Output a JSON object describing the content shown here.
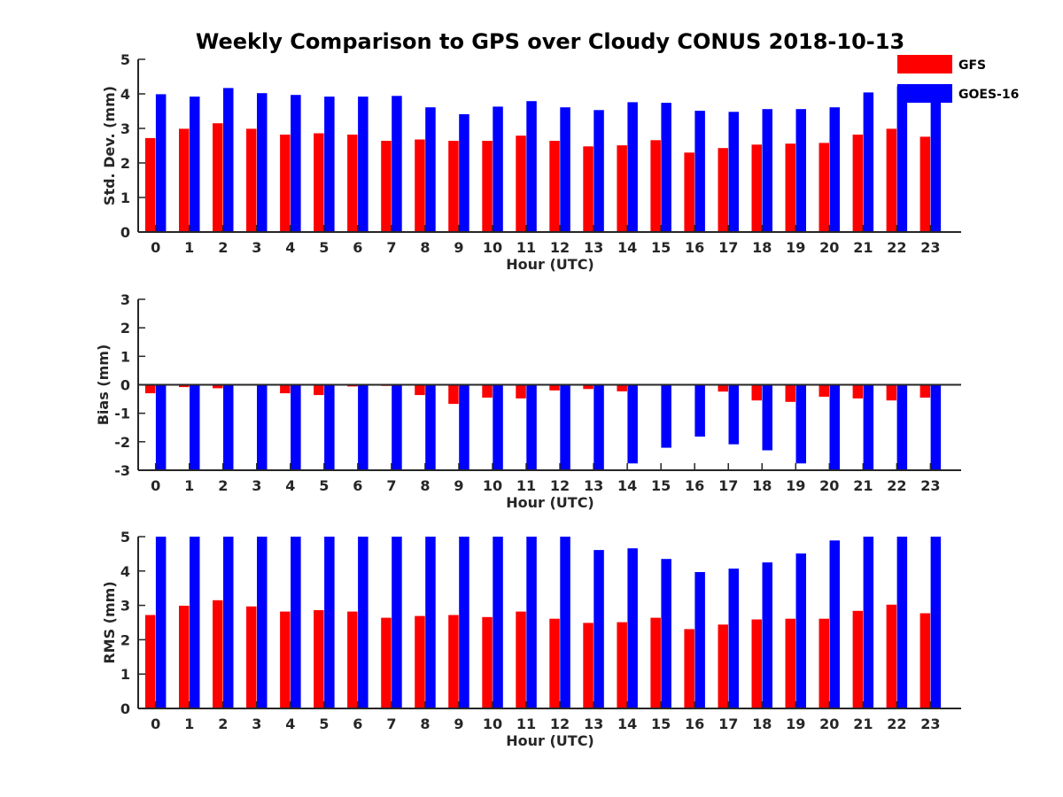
{
  "title": "Weekly Comparison to GPS over Cloudy CONUS 2018-10-13",
  "legend": {
    "placement": "top-right",
    "entries": [
      {
        "name": "GFS",
        "color": "#ff0000"
      },
      {
        "name": "GOES-16",
        "color": "#0000ff"
      }
    ]
  },
  "chart_data": [
    {
      "type": "bar",
      "xlabel": "Hour (UTC)",
      "ylabel": "Std. Dev. (mm)",
      "ylim": [
        0,
        5
      ],
      "yticks": [
        "0",
        "1",
        "2",
        "3",
        "4",
        "5"
      ],
      "categories": [
        "0",
        "1",
        "2",
        "3",
        "4",
        "5",
        "6",
        "7",
        "8",
        "9",
        "10",
        "11",
        "12",
        "13",
        "14",
        "15",
        "16",
        "17",
        "18",
        "19",
        "20",
        "21",
        "22",
        "23"
      ],
      "series": [
        {
          "name": "GFS",
          "color": "#ff0000",
          "values": [
            2.72,
            2.99,
            3.15,
            2.99,
            2.82,
            2.86,
            2.82,
            2.64,
            2.68,
            2.64,
            2.64,
            2.79,
            2.64,
            2.48,
            2.51,
            2.66,
            2.3,
            2.43,
            2.53,
            2.56,
            2.58,
            2.82,
            2.99,
            2.76
          ]
        },
        {
          "name": "GOES-16",
          "color": "#0000ff",
          "values": [
            3.99,
            3.92,
            4.17,
            4.02,
            3.97,
            3.92,
            3.92,
            3.94,
            3.61,
            3.41,
            3.63,
            3.79,
            3.61,
            3.53,
            3.76,
            3.74,
            3.51,
            3.48,
            3.56,
            3.56,
            3.61,
            4.04,
            4.22,
            3.94
          ]
        }
      ]
    },
    {
      "type": "bar",
      "xlabel": "Hour (UTC)",
      "ylabel": "Bias (mm)",
      "ylim": [
        -3,
        3
      ],
      "yticks": [
        "-3",
        "-2",
        "-1",
        "0",
        "1",
        "2",
        "3"
      ],
      "categories": [
        "0",
        "1",
        "2",
        "3",
        "4",
        "5",
        "6",
        "7",
        "8",
        "9",
        "10",
        "11",
        "12",
        "13",
        "14",
        "15",
        "16",
        "17",
        "18",
        "19",
        "20",
        "21",
        "22",
        "23"
      ],
      "series": [
        {
          "name": "GFS",
          "color": "#ff0000",
          "values": [
            -0.3,
            -0.08,
            -0.12,
            -0.02,
            -0.3,
            -0.36,
            -0.06,
            -0.04,
            -0.36,
            -0.67,
            -0.45,
            -0.48,
            -0.2,
            -0.15,
            -0.23,
            0.0,
            0.02,
            -0.24,
            -0.55,
            -0.6,
            -0.42,
            -0.48,
            -0.55,
            -0.45
          ]
        },
        {
          "name": "GOES-16",
          "color": "#0000ff",
          "values": [
            -3.0,
            -3.0,
            -3.0,
            -3.0,
            -3.0,
            -3.0,
            -3.0,
            -3.0,
            -3.0,
            -3.0,
            -3.0,
            -3.0,
            -3.0,
            -2.97,
            -2.76,
            -2.21,
            -1.82,
            -2.09,
            -2.3,
            -2.76,
            -3.0,
            -3.0,
            -3.0,
            -3.0
          ]
        }
      ]
    },
    {
      "type": "bar",
      "xlabel": "Hour (UTC)",
      "ylabel": "RMS (mm)",
      "ylim": [
        0,
        5
      ],
      "yticks": [
        "0",
        "1",
        "2",
        "3",
        "4",
        "5"
      ],
      "categories": [
        "0",
        "1",
        "2",
        "3",
        "4",
        "5",
        "6",
        "7",
        "8",
        "9",
        "10",
        "11",
        "12",
        "13",
        "14",
        "15",
        "16",
        "17",
        "18",
        "19",
        "20",
        "21",
        "22",
        "23"
      ],
      "series": [
        {
          "name": "GFS",
          "color": "#ff0000",
          "values": [
            2.72,
            2.99,
            3.15,
            2.97,
            2.82,
            2.86,
            2.82,
            2.64,
            2.69,
            2.72,
            2.66,
            2.82,
            2.61,
            2.49,
            2.51,
            2.64,
            2.31,
            2.44,
            2.59,
            2.61,
            2.61,
            2.84,
            3.02,
            2.77
          ]
        },
        {
          "name": "GOES-16",
          "color": "#0000ff",
          "values": [
            5.0,
            5.0,
            5.0,
            5.0,
            5.0,
            5.0,
            5.0,
            5.0,
            5.0,
            5.0,
            5.0,
            5.0,
            5.0,
            4.61,
            4.66,
            4.35,
            3.97,
            4.07,
            4.25,
            4.51,
            4.89,
            5.0,
            5.0,
            5.0
          ]
        }
      ]
    }
  ]
}
